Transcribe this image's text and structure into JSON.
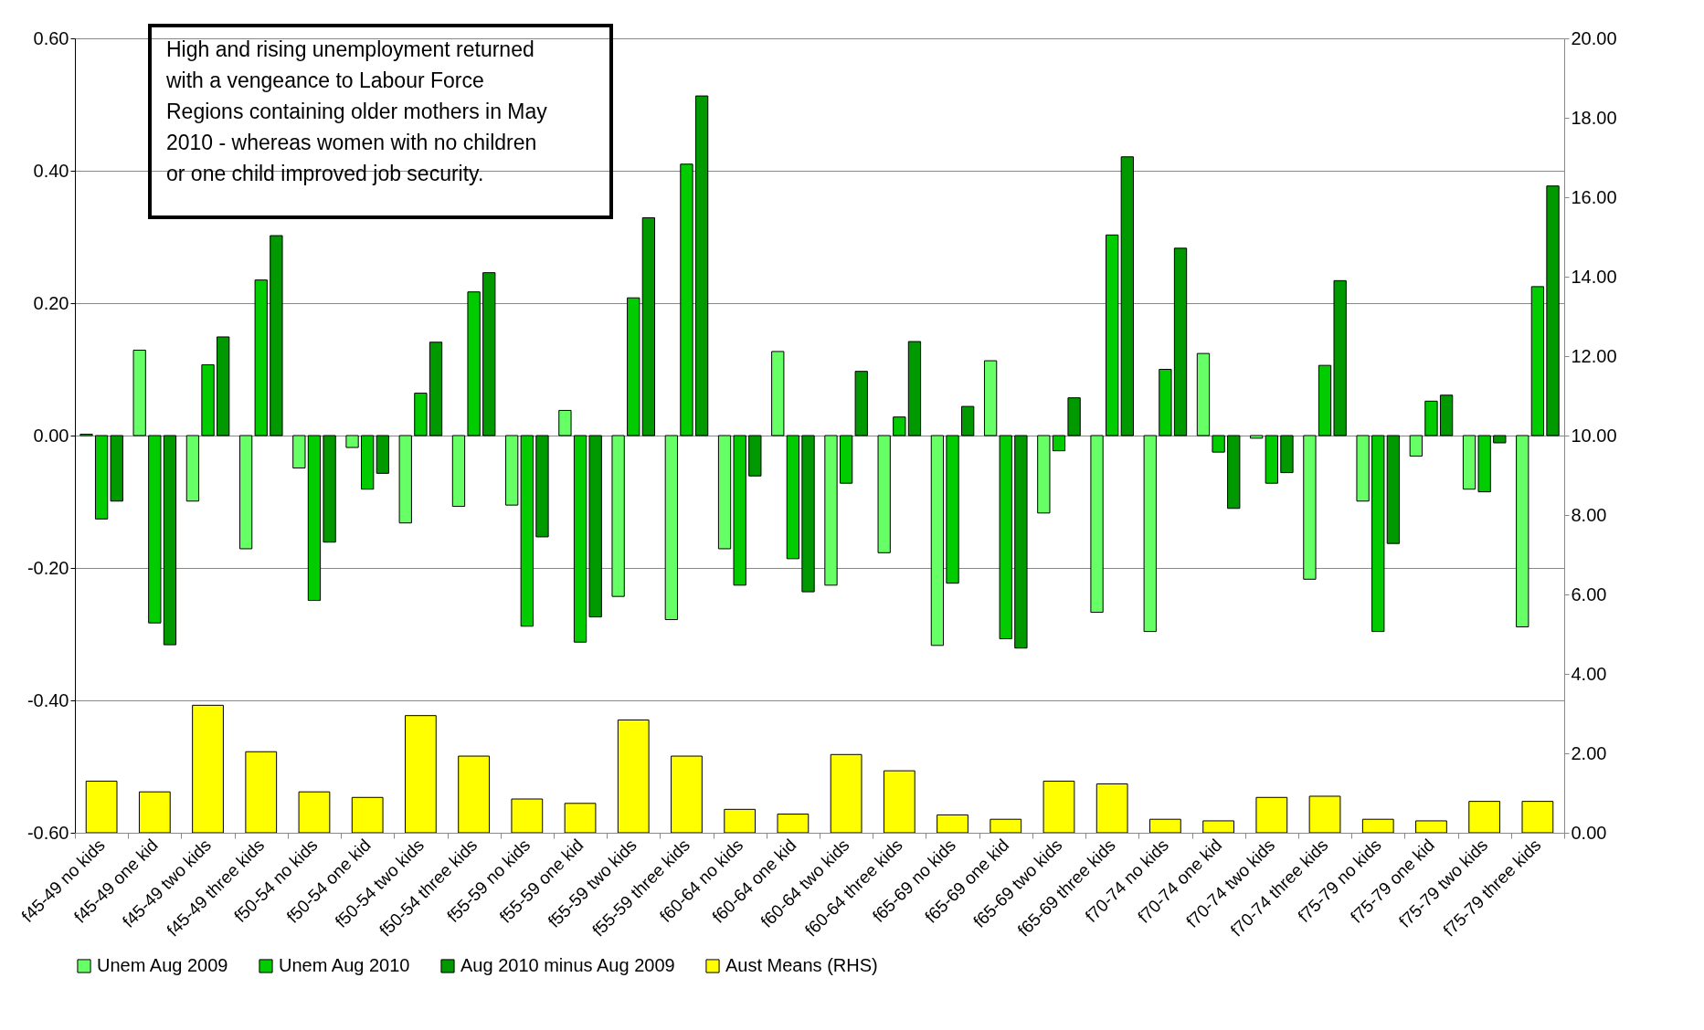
{
  "chart_data": {
    "type": "bar",
    "categories": [
      "f45-49 no kids",
      "f45-49 one kid",
      "f45-49 two kids",
      "f45-49 three kids",
      "f50-54 no kids",
      "f50-54 one kid",
      "f50-54 two kids",
      "f50-54 three kids",
      "f55-59 no kids",
      "f55-59 one kid",
      "f55-59 two kids",
      "f55-59 three kids",
      "f60-64 no kids",
      "f60-64 one kid",
      "f60-64 two kids",
      "f60-64 three kids",
      "f65-69 no kids",
      "f65-69 one kid",
      "f65-69 two kids",
      "f65-69 three kids",
      "f70-74 no kids",
      "f70-74 one kid",
      "f70-74 two kids",
      "f70-74 three kids",
      "f75-79 no kids",
      "f75-79 one kid",
      "f75-79  two kids",
      "f75-79 three kids"
    ],
    "series": [
      {
        "name": "Unem Aug 2009",
        "color": "#66ff66",
        "values": [
          0.002,
          0.129,
          -0.099,
          -0.171,
          -0.049,
          -0.018,
          -0.132,
          -0.107,
          -0.105,
          0.038,
          -0.243,
          -0.278,
          -0.171,
          0.127,
          -0.226,
          -0.177,
          -0.317,
          0.113,
          -0.117,
          -0.267,
          -0.296,
          0.124,
          -0.004,
          -0.217,
          -0.099,
          -0.031,
          -0.081,
          -0.289
        ]
      },
      {
        "name": "Unem Aug 2010",
        "color": "#00cc00",
        "values": [
          -0.126,
          -0.283,
          0.107,
          0.235,
          -0.249,
          -0.081,
          0.064,
          0.217,
          -0.288,
          -0.312,
          0.208,
          0.41,
          -0.226,
          -0.186,
          -0.072,
          0.028,
          -0.223,
          -0.307,
          -0.023,
          0.303,
          0.1,
          -0.025,
          -0.072,
          0.106,
          -0.296,
          0.052,
          -0.085,
          0.225
        ]
      },
      {
        "name": "Aug 2010 minus Aug 2009",
        "color": "#009900",
        "values": [
          -0.099,
          -0.316,
          0.149,
          0.302,
          -0.161,
          -0.057,
          0.141,
          0.246,
          -0.153,
          -0.274,
          0.329,
          0.513,
          -0.061,
          -0.236,
          0.097,
          0.142,
          0.044,
          -0.321,
          0.057,
          0.421,
          0.283,
          -0.11,
          -0.056,
          0.234,
          -0.163,
          0.061,
          -0.011,
          0.377
        ]
      },
      {
        "name": "Aust Means (RHS)",
        "color": "#ffff00",
        "axis": "y2",
        "values": [
          1.3,
          1.03,
          3.21,
          2.04,
          1.03,
          0.89,
          2.95,
          1.93,
          0.85,
          0.74,
          2.84,
          1.93,
          0.59,
          0.47,
          1.97,
          1.56,
          0.45,
          0.34,
          1.3,
          1.23,
          0.34,
          0.3,
          0.89,
          0.92,
          0.34,
          0.3,
          0.79,
          0.79
        ]
      }
    ],
    "ylim": [
      -0.6,
      0.6
    ],
    "yticks": [
      {
        "value": -0.6,
        "label": "-0.60"
      },
      {
        "value": -0.4,
        "label": "-0.40"
      },
      {
        "value": -0.2,
        "label": "-0.20"
      },
      {
        "value": 0,
        "label": "0.00"
      },
      {
        "value": 0.2,
        "label": "0.20"
      },
      {
        "value": 0.4,
        "label": "0.40"
      },
      {
        "value": 0.6,
        "label": "0.60"
      }
    ],
    "y2lim": [
      0,
      20
    ],
    "y2ticks": [
      {
        "value": 0,
        "label": "0.00"
      },
      {
        "value": 2,
        "label": "2.00"
      },
      {
        "value": 4,
        "label": "4.00"
      },
      {
        "value": 6,
        "label": "6.00"
      },
      {
        "value": 8,
        "label": "8.00"
      },
      {
        "value": 10,
        "label": "10.00"
      },
      {
        "value": 12,
        "label": "12.00"
      },
      {
        "value": 14,
        "label": "14.00"
      },
      {
        "value": 16,
        "label": "16.00"
      },
      {
        "value": 18,
        "label": "18.00"
      },
      {
        "value": 20,
        "label": "20.00"
      }
    ],
    "grid": "y",
    "legend": "bottom",
    "annotations": [
      "High and rising unemployment returned with a vengeance to Labour Force Regions containing older mothers in May 2010 - whereas women with no children or one child improved job security."
    ]
  }
}
